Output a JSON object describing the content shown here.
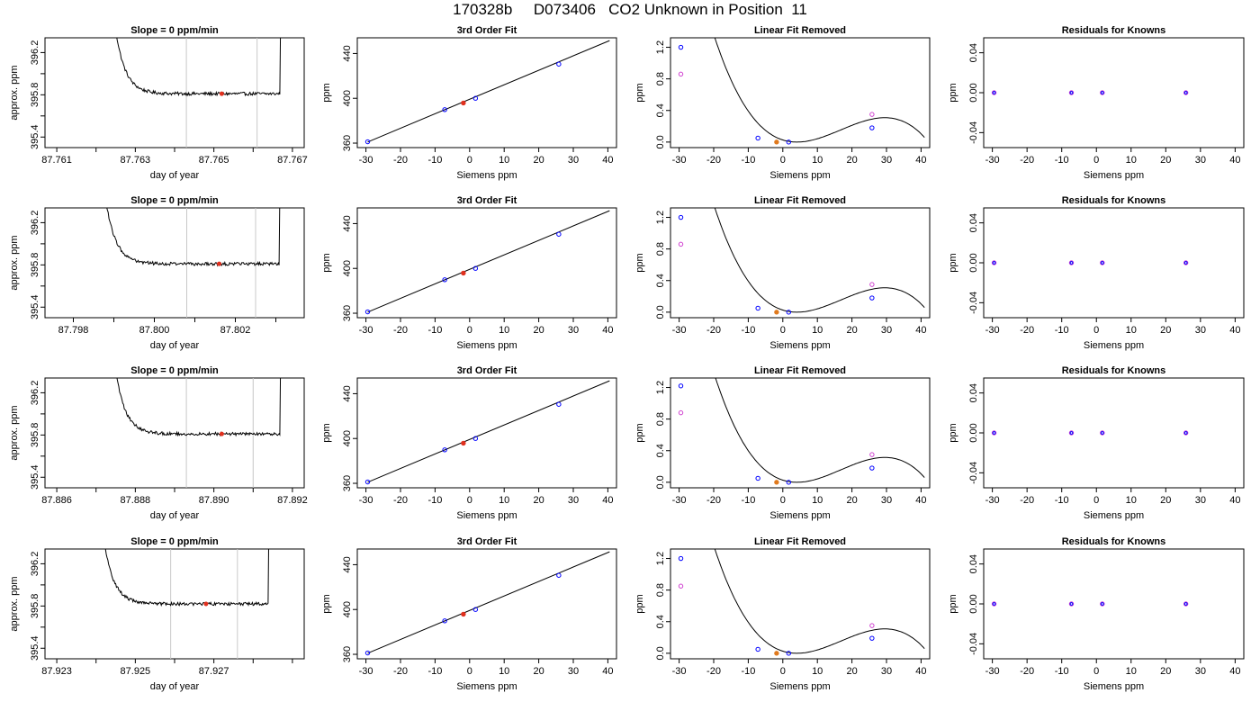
{
  "page": {
    "title": "170328b     D073406   CO2 Unknown in Position  11"
  },
  "chart_data": [
    {
      "type": "line",
      "title": "Slope =  0  ppm/min",
      "xlabel": "day of year",
      "ylabel": "approx. ppm",
      "xlim": [
        87.7607,
        87.7673
      ],
      "ylim": [
        395.3,
        396.34
      ],
      "xticks": [
        "87.761",
        "87.762",
        "87.763",
        "87.764",
        "87.765",
        "87.766",
        "87.767"
      ],
      "xtick_labels": [
        "87.761",
        "",
        "87.763",
        "",
        "87.765",
        "",
        "87.767"
      ],
      "yticks": [
        "395.4",
        "395.8",
        "396.2"
      ],
      "ytick_minor": [
        395.6,
        396.0
      ],
      "trace": {
        "x_start": 87.7621,
        "x_end": 87.7667,
        "level": 395.81,
        "left_edge_x": 87.7624,
        "right_edge_x": 87.7667
      },
      "vlines": [
        87.7643,
        87.7661
      ],
      "marker": {
        "x": 87.7652,
        "y": 395.81
      }
    },
    {
      "type": "scatter",
      "title": "3rd Order Fit",
      "xlabel": "Siemens ppm",
      "ylabel": "ppm",
      "xlim": [
        -32.5,
        42.5
      ],
      "ylim": [
        356,
        454
      ],
      "xticks": [
        "-30",
        "-20",
        "-10",
        "0",
        "10",
        "20",
        "30",
        "40"
      ],
      "yticks": [
        "360",
        "400",
        "440"
      ],
      "fit_line": [
        [
          -29.5,
          361.0
        ],
        [
          40.5,
          451.5
        ]
      ],
      "points": [
        [
          -29.5,
          361.2
        ],
        [
          -7.2,
          389.9
        ],
        [
          1.7,
          400.0
        ],
        [
          25.8,
          430.5
        ]
      ],
      "unknown": [
        -1.8,
        395.8
      ]
    },
    {
      "type": "scatter",
      "title": "Linear Fit Removed",
      "xlabel": "Siemens ppm",
      "ylabel": "ppm",
      "xlim": [
        -32.5,
        42.5
      ],
      "ylim": [
        -0.07,
        1.32
      ],
      "xticks": [
        "-30",
        "-20",
        "-10",
        "0",
        "10",
        "20",
        "30",
        "40"
      ],
      "yticks": [
        "0.0",
        "0.4",
        "0.8",
        "1.2"
      ],
      "curve_scale": 1.0,
      "points": [
        [
          -29.5,
          1.2
        ],
        [
          -7.2,
          0.05
        ],
        [
          1.7,
          0.0
        ],
        [
          25.8,
          0.18
        ]
      ],
      "open_points": [
        [
          -29.5,
          0.86
        ],
        [
          25.8,
          0.35
        ]
      ],
      "unknown": [
        -1.8,
        0.0
      ]
    },
    {
      "type": "scatter",
      "title": "Residuals for Knowns",
      "xlabel": "Siemens ppm",
      "ylabel": "ppm",
      "xlim": [
        -32.5,
        42.5
      ],
      "ylim": [
        -0.055,
        0.055
      ],
      "xticks": [
        "-30",
        "-20",
        "-10",
        "0",
        "10",
        "20",
        "30",
        "40"
      ],
      "yticks": [
        "-0.04",
        "0.00",
        "0.04"
      ],
      "points": [
        [
          -29.5,
          0.0
        ],
        [
          -7.2,
          0.0
        ],
        [
          1.7,
          0.0
        ],
        [
          25.8,
          0.0
        ]
      ]
    },
    {
      "type": "line",
      "title": "Slope =  0  ppm/min",
      "xlabel": "day of year",
      "ylabel": "approx. ppm",
      "xlim": [
        87.7973,
        87.8037
      ],
      "ylim": [
        395.3,
        396.34
      ],
      "xticks": [
        "87.798",
        "87.799",
        "87.800",
        "87.801",
        "87.802",
        "87.803"
      ],
      "xtick_labels": [
        "87.798",
        "",
        "87.800",
        "",
        "87.802",
        ""
      ],
      "yticks": [
        "395.4",
        "395.8",
        "396.2"
      ],
      "ytick_minor": [
        395.6,
        396.0
      ],
      "trace": {
        "x_start": 87.7984,
        "x_end": 87.8031,
        "level": 395.81,
        "left_edge_x": 87.7987,
        "right_edge_x": 87.8031
      },
      "vlines": [
        87.8008,
        87.8025
      ],
      "marker": {
        "x": 87.8016,
        "y": 395.81
      }
    },
    {
      "type": "scatter",
      "title": "3rd Order Fit",
      "xlabel": "Siemens ppm",
      "ylabel": "ppm",
      "xlim": [
        -32.5,
        42.5
      ],
      "ylim": [
        356,
        454
      ],
      "xticks": [
        "-30",
        "-20",
        "-10",
        "0",
        "10",
        "20",
        "30",
        "40"
      ],
      "yticks": [
        "360",
        "400",
        "440"
      ],
      "fit_line": [
        [
          -29.5,
          361.0
        ],
        [
          40.5,
          451.5
        ]
      ],
      "points": [
        [
          -29.5,
          361.2
        ],
        [
          -7.2,
          389.9
        ],
        [
          1.7,
          400.0
        ],
        [
          25.8,
          430.5
        ]
      ],
      "unknown": [
        -1.8,
        395.8
      ]
    },
    {
      "type": "scatter",
      "title": "Linear Fit Removed",
      "xlabel": "Siemens ppm",
      "ylabel": "ppm",
      "xlim": [
        -32.5,
        42.5
      ],
      "ylim": [
        -0.07,
        1.32
      ],
      "xticks": [
        "-30",
        "-20",
        "-10",
        "0",
        "10",
        "20",
        "30",
        "40"
      ],
      "yticks": [
        "0.0",
        "0.4",
        "0.8",
        "1.2"
      ],
      "curve_scale": 1.0,
      "points": [
        [
          -29.5,
          1.2
        ],
        [
          -7.2,
          0.05
        ],
        [
          1.7,
          0.0
        ],
        [
          25.8,
          0.18
        ]
      ],
      "open_points": [
        [
          -29.5,
          0.86
        ],
        [
          25.8,
          0.35
        ]
      ],
      "unknown": [
        -1.8,
        0.0
      ]
    },
    {
      "type": "scatter",
      "title": "Residuals for Knowns",
      "xlabel": "Siemens ppm",
      "ylabel": "ppm",
      "xlim": [
        -32.5,
        42.5
      ],
      "ylim": [
        -0.055,
        0.055
      ],
      "xticks": [
        "-30",
        "-20",
        "-10",
        "0",
        "10",
        "20",
        "30",
        "40"
      ],
      "yticks": [
        "-0.04",
        "0.00",
        "0.04"
      ],
      "points": [
        [
          -29.5,
          0.0
        ],
        [
          -7.2,
          0.0
        ],
        [
          1.7,
          0.0
        ],
        [
          25.8,
          0.0
        ]
      ]
    },
    {
      "type": "line",
      "title": "Slope =  0  ppm/min",
      "xlabel": "day of year",
      "ylabel": "approx. ppm",
      "xlim": [
        87.8857,
        87.8923
      ],
      "ylim": [
        395.3,
        396.34
      ],
      "xticks": [
        "87.886",
        "87.887",
        "87.888",
        "87.889",
        "87.890",
        "87.891",
        "87.892"
      ],
      "xtick_labels": [
        "87.886",
        "",
        "87.888",
        "",
        "87.890",
        "",
        "87.892"
      ],
      "yticks": [
        "395.4",
        "395.8",
        "396.2"
      ],
      "ytick_minor": [
        395.6,
        396.0
      ],
      "trace": {
        "x_start": 87.8871,
        "x_end": 87.8917,
        "level": 395.81,
        "left_edge_x": 87.8874,
        "right_edge_x": 87.8917
      },
      "vlines": [
        87.8893,
        87.891
      ],
      "marker": {
        "x": 87.8902,
        "y": 395.81
      }
    },
    {
      "type": "scatter",
      "title": "3rd Order Fit",
      "xlabel": "Siemens ppm",
      "ylabel": "ppm",
      "xlim": [
        -32.5,
        42.5
      ],
      "ylim": [
        356,
        454
      ],
      "xticks": [
        "-30",
        "-20",
        "-10",
        "0",
        "10",
        "20",
        "30",
        "40"
      ],
      "yticks": [
        "360",
        "400",
        "440"
      ],
      "fit_line": [
        [
          -29.5,
          361.0
        ],
        [
          40.5,
          451.5
        ]
      ],
      "points": [
        [
          -29.5,
          361.2
        ],
        [
          -7.2,
          389.9
        ],
        [
          1.7,
          400.0
        ],
        [
          25.8,
          430.5
        ]
      ],
      "unknown": [
        -1.8,
        395.8
      ]
    },
    {
      "type": "scatter",
      "title": "Linear Fit Removed",
      "xlabel": "Siemens ppm",
      "ylabel": "ppm",
      "xlim": [
        -32.5,
        42.5
      ],
      "ylim": [
        -0.07,
        1.32
      ],
      "xticks": [
        "-30",
        "-20",
        "-10",
        "0",
        "10",
        "20",
        "30",
        "40"
      ],
      "yticks": [
        "0.0",
        "0.4",
        "0.8",
        "1.2"
      ],
      "curve_scale": 1.02,
      "points": [
        [
          -29.5,
          1.22
        ],
        [
          -7.2,
          0.05
        ],
        [
          1.7,
          0.0
        ],
        [
          25.8,
          0.18
        ]
      ],
      "open_points": [
        [
          -29.5,
          0.88
        ],
        [
          25.8,
          0.35
        ]
      ],
      "unknown": [
        -1.8,
        0.0
      ]
    },
    {
      "type": "scatter",
      "title": "Residuals for Knowns",
      "xlabel": "Siemens ppm",
      "ylabel": "ppm",
      "xlim": [
        -32.5,
        42.5
      ],
      "ylim": [
        -0.055,
        0.055
      ],
      "xticks": [
        "-30",
        "-20",
        "-10",
        "0",
        "10",
        "20",
        "30",
        "40"
      ],
      "yticks": [
        "-0.04",
        "0.00",
        "0.04"
      ],
      "points": [
        [
          -29.5,
          0.0
        ],
        [
          -7.2,
          0.0
        ],
        [
          1.7,
          0.0
        ],
        [
          25.8,
          0.0
        ]
      ]
    },
    {
      "type": "line",
      "title": "Slope =  0  ppm/min",
      "xlabel": "day of year",
      "ylabel": "approx. ppm",
      "xlim": [
        87.9227,
        87.9293
      ],
      "ylim": [
        395.3,
        396.34
      ],
      "xticks": [
        "87.923",
        "87.924",
        "87.925",
        "87.926",
        "87.927",
        "87.928",
        "87.929"
      ],
      "xtick_labels": [
        "87.923",
        "",
        "87.925",
        "",
        "87.927",
        "",
        ""
      ],
      "yticks": [
        "395.4",
        "395.8",
        "396.2"
      ],
      "ytick_minor": [
        395.6,
        396.0
      ],
      "trace": {
        "x_start": 87.9238,
        "x_end": 87.9284,
        "level": 395.82,
        "left_edge_x": 87.9241,
        "right_edge_x": 87.9284
      },
      "vlines": [
        87.9259,
        87.9276
      ],
      "marker": {
        "x": 87.9268,
        "y": 395.82
      }
    },
    {
      "type": "scatter",
      "title": "3rd Order Fit",
      "xlabel": "Siemens ppm",
      "ylabel": "ppm",
      "xlim": [
        -32.5,
        42.5
      ],
      "ylim": [
        356,
        454
      ],
      "xticks": [
        "-30",
        "-20",
        "-10",
        "0",
        "10",
        "20",
        "30",
        "40"
      ],
      "yticks": [
        "360",
        "400",
        "440"
      ],
      "fit_line": [
        [
          -29.5,
          361.0
        ],
        [
          40.5,
          451.5
        ]
      ],
      "points": [
        [
          -29.5,
          361.2
        ],
        [
          -7.2,
          389.9
        ],
        [
          1.7,
          400.0
        ],
        [
          25.8,
          430.5
        ]
      ],
      "unknown": [
        -1.8,
        395.8
      ]
    },
    {
      "type": "scatter",
      "title": "Linear Fit Removed",
      "xlabel": "Siemens ppm",
      "ylabel": "ppm",
      "xlim": [
        -32.5,
        42.5
      ],
      "ylim": [
        -0.07,
        1.32
      ],
      "xticks": [
        "-30",
        "-20",
        "-10",
        "0",
        "10",
        "20",
        "30",
        "40"
      ],
      "yticks": [
        "0.0",
        "0.4",
        "0.8",
        "1.2"
      ],
      "curve_scale": 1.0,
      "points": [
        [
          -29.5,
          1.2
        ],
        [
          -7.2,
          0.05
        ],
        [
          1.7,
          0.0
        ],
        [
          25.8,
          0.19
        ]
      ],
      "open_points": [
        [
          -29.5,
          0.85
        ],
        [
          25.8,
          0.35
        ]
      ],
      "unknown": [
        -1.8,
        0.0
      ]
    },
    {
      "type": "scatter",
      "title": "Residuals for Knowns",
      "xlabel": "Siemens ppm",
      "ylabel": "ppm",
      "xlim": [
        -32.5,
        42.5
      ],
      "ylim": [
        -0.055,
        0.055
      ],
      "xticks": [
        "-30",
        "-20",
        "-10",
        "0",
        "10",
        "20",
        "30",
        "40"
      ],
      "yticks": [
        "-0.04",
        "0.00",
        "0.04"
      ],
      "points": [
        [
          -29.5,
          0.0
        ],
        [
          -7.2,
          0.0
        ],
        [
          1.7,
          0.0
        ],
        [
          25.8,
          0.0
        ]
      ]
    }
  ]
}
